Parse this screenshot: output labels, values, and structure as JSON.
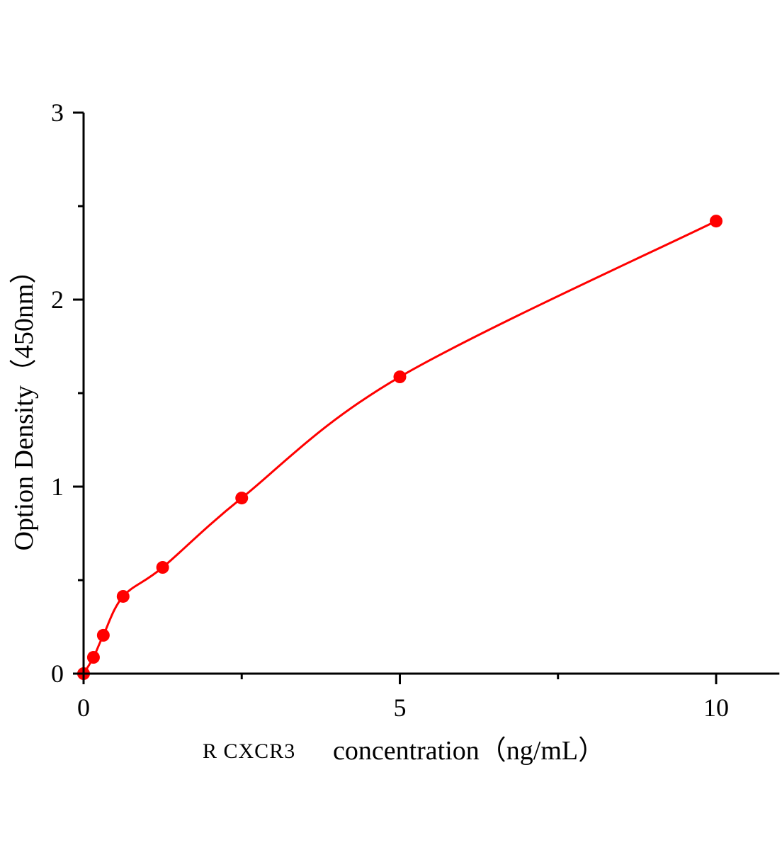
{
  "chart_data": {
    "type": "scatter",
    "title": "",
    "xlabel_prefix": "R CXCR3",
    "xlabel": "concentration（ng/mL）",
    "ylabel": "Option Density（450nm）",
    "xlim": [
      0,
      11
    ],
    "ylim": [
      0,
      3
    ],
    "xticks": [
      0,
      5,
      10
    ],
    "xtick_labels": [
      "0",
      "5",
      "10"
    ],
    "xminor": [
      2.5,
      7.5
    ],
    "yticks": [
      0,
      1,
      2,
      3
    ],
    "ytick_labels": [
      "0",
      "1",
      "2",
      "3"
    ],
    "yminor": [
      0.5,
      1.5,
      2.5
    ],
    "grid": false,
    "series": [
      {
        "x": [
          0,
          0.156,
          0.312,
          0.625,
          1.25,
          2.5,
          5,
          10
        ],
        "y": [
          0.0,
          0.087,
          0.205,
          0.413,
          0.568,
          0.939,
          1.587,
          2.42
        ],
        "marker": "circle",
        "fit_line": true
      }
    ],
    "colors": {
      "series": "#ff0000",
      "axis": "#000000"
    }
  }
}
